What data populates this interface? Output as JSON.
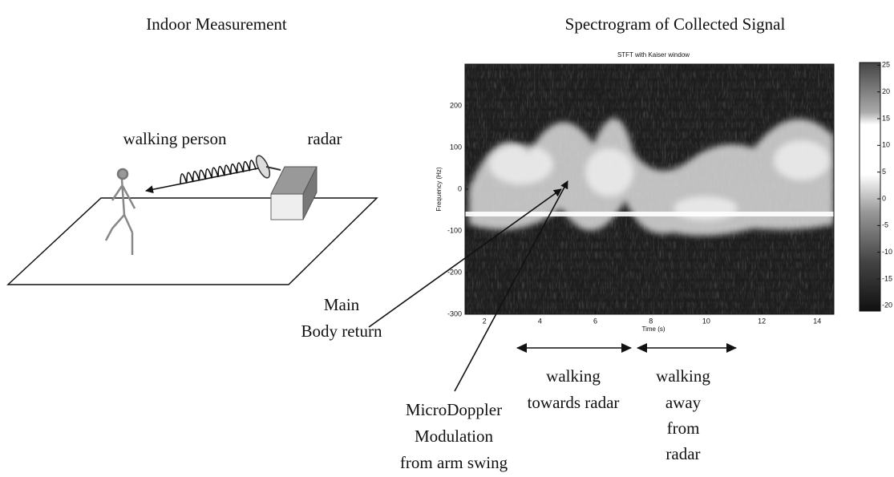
{
  "left": {
    "title": "Indoor Measurement",
    "person_label": "walking person",
    "radar_label": "radar"
  },
  "right": {
    "title": "Spectrogram of Collected Signal"
  },
  "spectrogram": {
    "title": "STFT with Kaiser window",
    "xlabel": "Time (s)",
    "ylabel": "Frequency (Hz)",
    "xlim": [
      1.3,
      14.6
    ],
    "xticks": [
      2,
      4,
      6,
      8,
      10,
      12,
      14
    ],
    "ylim": [
      -300,
      300
    ],
    "yticks": [
      200,
      100,
      0,
      -100,
      -200,
      -300
    ],
    "clim": [
      -21,
      25.5
    ],
    "cticks": [
      25,
      20,
      15,
      10,
      5,
      0,
      -5,
      -10,
      -15,
      -20
    ]
  },
  "annotations": {
    "main_body": [
      "Main",
      "Body return"
    ],
    "micro_doppler": [
      "MicroDoppler",
      "Modulation",
      "from arm swing"
    ],
    "towards": [
      "walking",
      "towards radar"
    ],
    "away": [
      "walking",
      "away",
      "from",
      "radar"
    ]
  }
}
